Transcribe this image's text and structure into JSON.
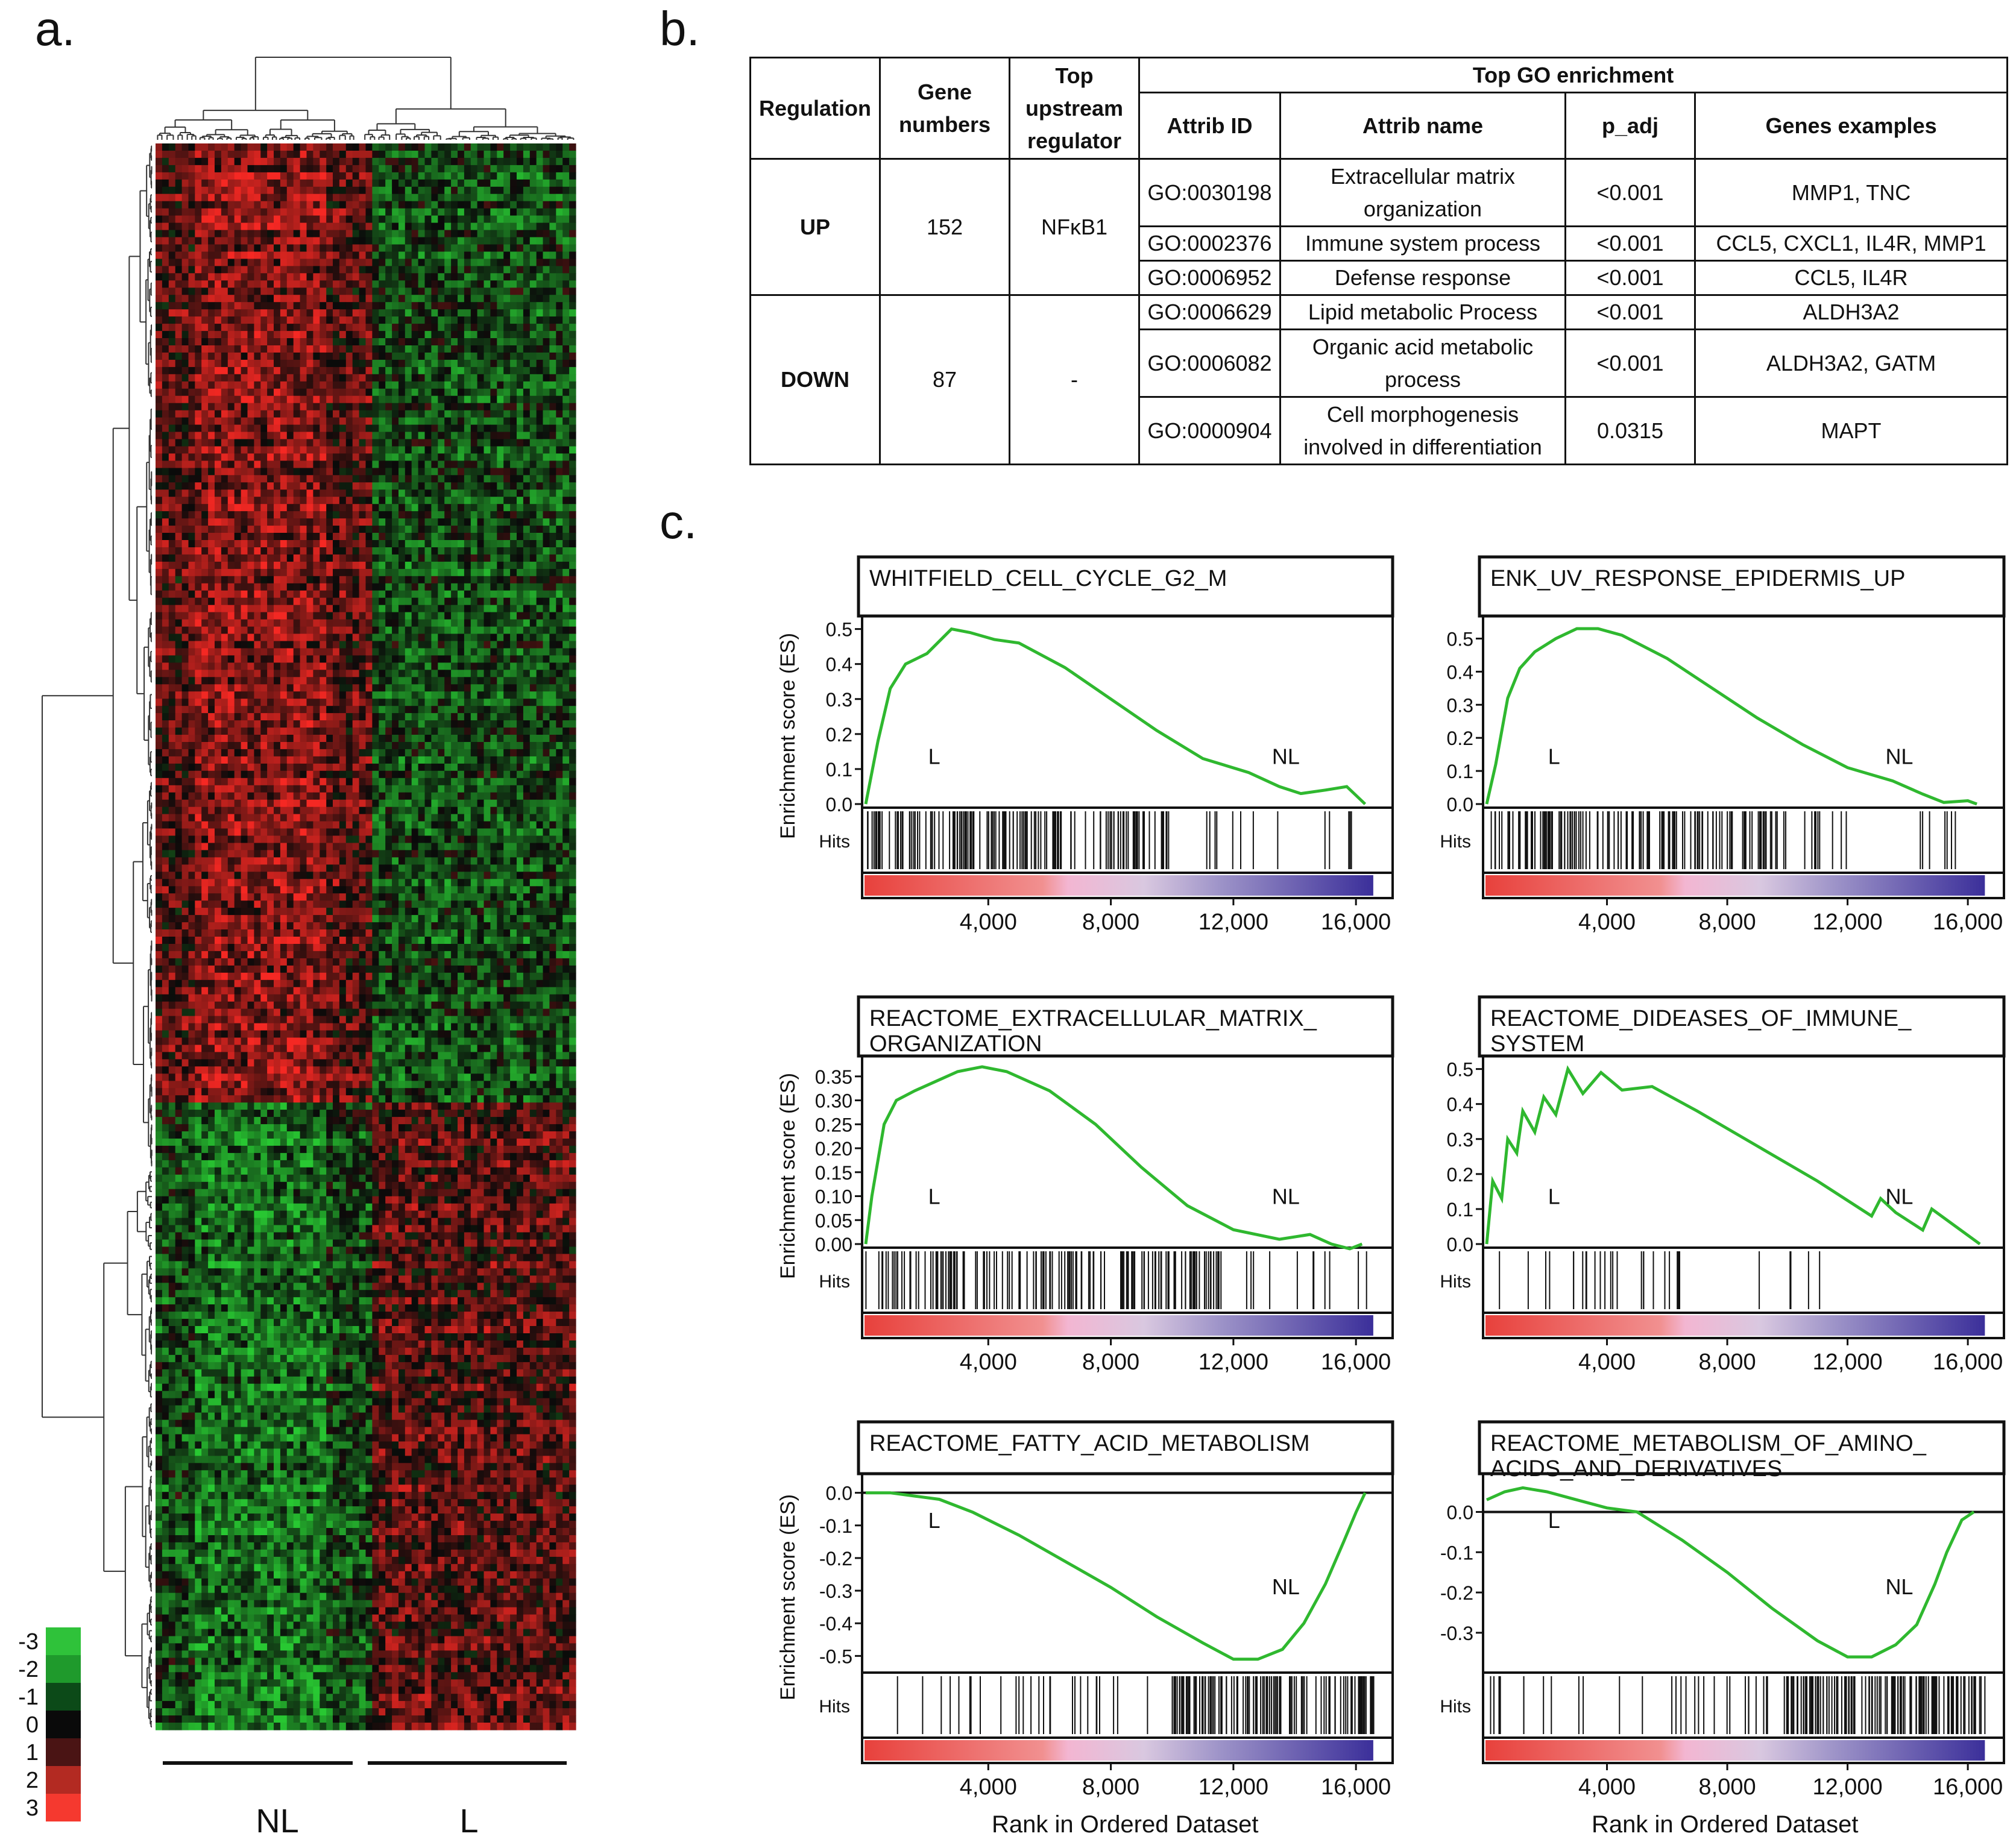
{
  "panels": {
    "a": "a.",
    "b": "b.",
    "c": "c."
  },
  "heatmap": {
    "group_labels": [
      "NL",
      "L"
    ],
    "legend_values": [
      "-3",
      "-2",
      "-1",
      "0",
      "1",
      "2",
      "3"
    ],
    "legend_colors": [
      "#2fc23a",
      "#1f9a2c",
      "#0c4a18",
      "#0a0a0a",
      "#4a1414",
      "#b32a22",
      "#f5392f"
    ]
  },
  "table": {
    "headers": {
      "regulation": "Regulation",
      "gene_numbers": "Gene numbers",
      "top_upstream": "Top upstream regulator",
      "top_go": "Top GO enrichment",
      "attrib_id": "Attrib ID",
      "attrib_name": "Attrib name",
      "p_adj": "p_adj",
      "genes_examples": "Genes examples"
    },
    "groups": [
      {
        "regulation": "UP",
        "gene_numbers": "152",
        "regulator": "NFκB1",
        "rows": [
          {
            "id": "GO:0030198",
            "name": "Extracellular matrix organization",
            "p": "<0.001",
            "genes": "MMP1, TNC"
          },
          {
            "id": "GO:0002376",
            "name": "Immune system process",
            "p": "<0.001",
            "genes": "CCL5, CXCL1, IL4R, MMP1"
          },
          {
            "id": "GO:0006952",
            "name": "Defense response",
            "p": "<0.001",
            "genes": "CCL5, IL4R"
          }
        ]
      },
      {
        "regulation": "DOWN",
        "gene_numbers": "87",
        "regulator": "-",
        "rows": [
          {
            "id": "GO:0006629",
            "name": "Lipid metabolic Process",
            "p": "<0.001",
            "genes": "ALDH3A2"
          },
          {
            "id": "GO:0006082",
            "name": "Organic acid metabolic process",
            "p": "<0.001",
            "genes": "ALDH3A2, GATM"
          },
          {
            "id": "GO:0000904",
            "name": "Cell morphogenesis involved in differentiation",
            "p": "0.0315",
            "genes": "MAPT"
          }
        ]
      }
    ]
  },
  "gsea": {
    "ylabel": "Enrichment score (ES)",
    "hits_label": "Hits",
    "xlabel": "Rank in Ordered Dataset",
    "x_ticks": [
      "4,000",
      "8,000",
      "12,000",
      "16,000"
    ],
    "left_label": "L",
    "right_label": "NL",
    "line_color": "#2fb82f"
  },
  "chart_data": [
    {
      "type": "line",
      "title": "WHITFIELD_CELL_CYCLE_G2_M",
      "xlabel": "Rank in Ordered Dataset",
      "ylabel": "Enrichment score (ES)",
      "xlim": [
        0,
        17000
      ],
      "ylim": [
        0,
        0.52
      ],
      "y_ticks": [
        "0.0",
        "0.1",
        "0.2",
        "0.3",
        "0.4",
        "0.5"
      ],
      "x": [
        0,
        400,
        800,
        1300,
        2000,
        2800,
        3400,
        4200,
        5000,
        6500,
        8000,
        9500,
        11000,
        12500,
        13500,
        14200,
        15000,
        15700,
        16300
      ],
      "y": [
        0,
        0.18,
        0.33,
        0.4,
        0.43,
        0.5,
        0.49,
        0.47,
        0.46,
        0.39,
        0.3,
        0.21,
        0.13,
        0.09,
        0.05,
        0.03,
        0.04,
        0.05,
        0.0
      ]
    },
    {
      "type": "line",
      "title": "ENK_UV_RESPONSE_EPIDERMIS_UP",
      "xlabel": "Rank in Ordered Dataset",
      "ylabel": "Enrichment score (ES)",
      "xlim": [
        0,
        17000
      ],
      "ylim": [
        0,
        0.55
      ],
      "y_ticks": [
        "0.0",
        "0.1",
        "0.2",
        "0.3",
        "0.4",
        "0.5"
      ],
      "x": [
        0,
        300,
        700,
        1100,
        1600,
        2300,
        3000,
        3700,
        4500,
        6000,
        7500,
        9000,
        10500,
        12000,
        13500,
        14500,
        15200,
        16000,
        16300
      ],
      "y": [
        0,
        0.12,
        0.32,
        0.41,
        0.46,
        0.5,
        0.53,
        0.53,
        0.51,
        0.44,
        0.35,
        0.26,
        0.18,
        0.11,
        0.07,
        0.03,
        0.005,
        0.01,
        0.0
      ]
    },
    {
      "type": "line",
      "title": "REACTOME_EXTRACELLULAR_MATRIX_ ORGANIZATION",
      "xlabel": "Rank in Ordered Dataset",
      "ylabel": "Enrichment score (ES)",
      "xlim": [
        0,
        17000
      ],
      "ylim": [
        0,
        0.38
      ],
      "y_ticks": [
        "0.00",
        "0.05",
        "0.10",
        "0.15",
        "0.20",
        "0.25",
        "0.30",
        "0.35"
      ],
      "x": [
        0,
        200,
        600,
        1000,
        1600,
        2300,
        3000,
        3800,
        4600,
        6000,
        7500,
        9000,
        10500,
        12000,
        13500,
        14500,
        15200,
        15800,
        16200
      ],
      "y": [
        0,
        0.1,
        0.25,
        0.3,
        0.32,
        0.34,
        0.36,
        0.37,
        0.36,
        0.32,
        0.25,
        0.16,
        0.08,
        0.03,
        0.01,
        0.02,
        0.0,
        -0.01,
        0.0
      ]
    },
    {
      "type": "line",
      "title": "REACTOME_DIDEASES_OF_IMMUNE_ SYSTEM",
      "xlabel": "Rank in Ordered Dataset",
      "ylabel": "Enrichment score (ES)",
      "xlim": [
        0,
        17000
      ],
      "ylim": [
        0,
        0.52
      ],
      "y_ticks": [
        "0.0",
        "0.1",
        "0.2",
        "0.3",
        "0.4",
        "0.5"
      ],
      "x": [
        0,
        200,
        500,
        700,
        1000,
        1200,
        1600,
        1900,
        2300,
        2700,
        3200,
        3800,
        4500,
        5500,
        7000,
        9000,
        11000,
        12800,
        13100,
        13600,
        14500,
        14800,
        16400
      ],
      "y": [
        0,
        0.18,
        0.13,
        0.3,
        0.26,
        0.38,
        0.32,
        0.42,
        0.37,
        0.5,
        0.43,
        0.49,
        0.44,
        0.45,
        0.38,
        0.28,
        0.18,
        0.08,
        0.13,
        0.09,
        0.04,
        0.1,
        0.0
      ]
    },
    {
      "type": "line",
      "title": "REACTOME_FATTY_ACID_METABOLISM",
      "xlabel": "Rank in Ordered Dataset",
      "ylabel": "Enrichment score (ES)",
      "xlim": [
        0,
        17000
      ],
      "ylim": [
        -0.54,
        0.04
      ],
      "y_ticks": [
        "0.0",
        "-0.1",
        "-0.2",
        "-0.3",
        "-0.4",
        "-0.5"
      ],
      "x": [
        0,
        800,
        1600,
        2400,
        3500,
        5000,
        6500,
        8000,
        9500,
        11000,
        12000,
        12800,
        13600,
        14300,
        15000,
        15600,
        16000,
        16300
      ],
      "y": [
        0.0,
        0.0,
        -0.01,
        -0.02,
        -0.06,
        -0.13,
        -0.21,
        -0.29,
        -0.38,
        -0.46,
        -0.51,
        -0.51,
        -0.48,
        -0.4,
        -0.28,
        -0.15,
        -0.06,
        0.0
      ]
    },
    {
      "type": "line",
      "title": "REACTOME_METABOLISM_OF_AMINO_ ACIDS_AND_DERIVATIVES",
      "xlabel": "Rank in Ordered Dataset",
      "ylabel": "Enrichment score (ES)",
      "xlim": [
        0,
        17000
      ],
      "ylim": [
        -0.39,
        0.08
      ],
      "y_ticks": [
        "0.0",
        "-0.1",
        "-0.2",
        "-0.3"
      ],
      "x": [
        0,
        600,
        1200,
        2000,
        3000,
        4000,
        5000,
        6500,
        8000,
        9500,
        11000,
        12000,
        12800,
        13600,
        14300,
        14900,
        15300,
        15800,
        16200
      ],
      "y": [
        0.03,
        0.05,
        0.06,
        0.05,
        0.03,
        0.01,
        0.0,
        -0.07,
        -0.15,
        -0.24,
        -0.32,
        -0.36,
        -0.36,
        -0.33,
        -0.28,
        -0.18,
        -0.1,
        -0.02,
        0.0
      ]
    }
  ]
}
